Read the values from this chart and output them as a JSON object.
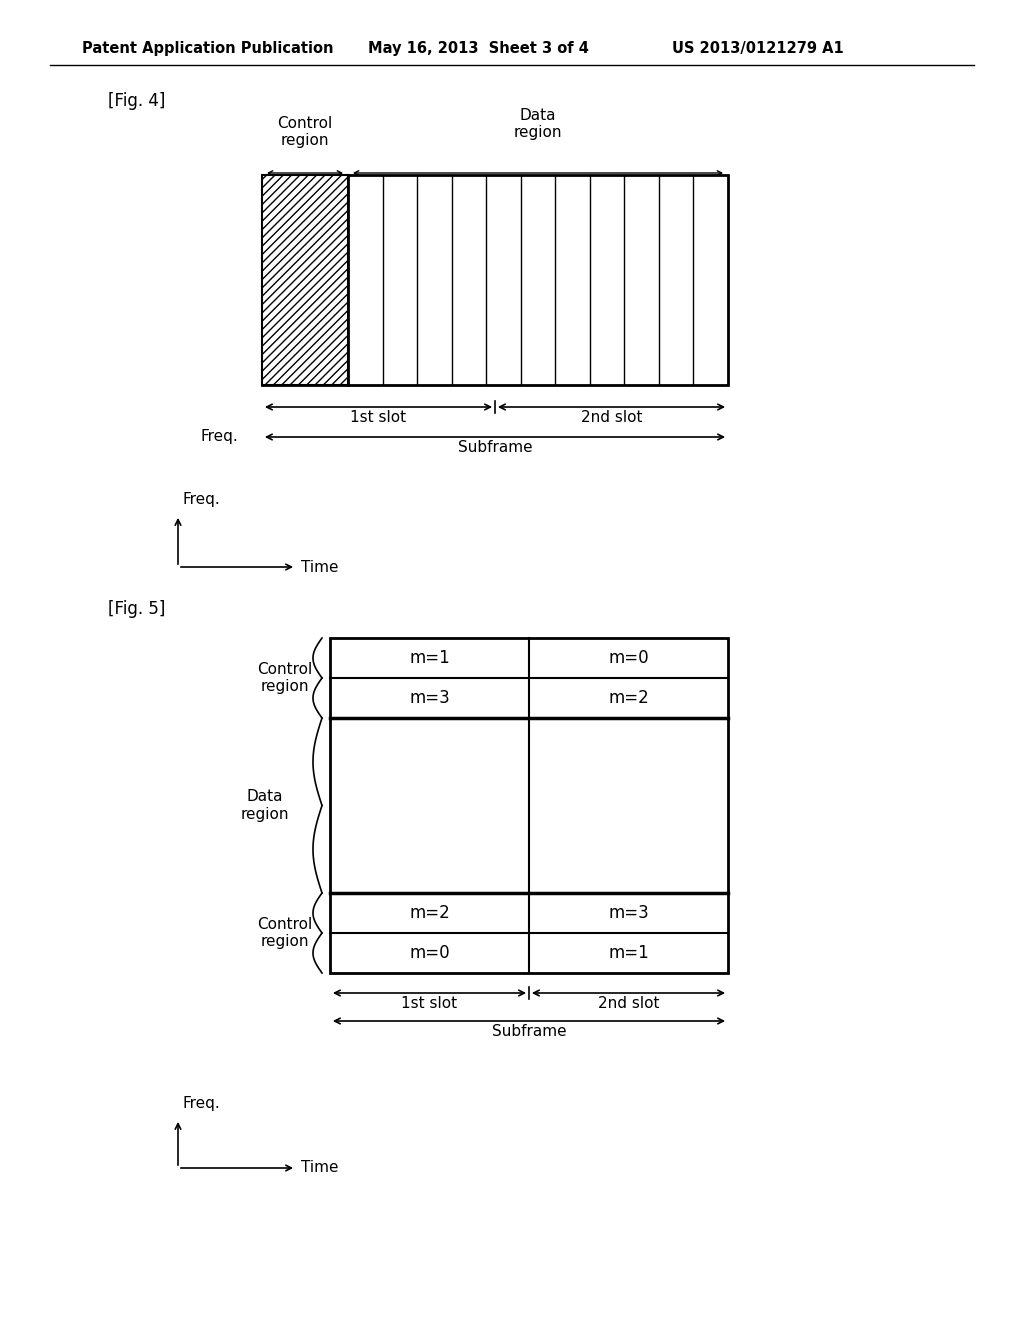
{
  "bg_color": "#ffffff",
  "header_text": "Patent Application Publication",
  "header_date": "May 16, 2013  Sheet 3 of 4",
  "header_patent": "US 2013/0121279 A1",
  "fig4_label": "[Fig. 4]",
  "fig5_label": "[Fig. 5]",
  "fig4_control_label": "Control\nregion",
  "fig4_data_label": "Data\nregion",
  "fig4_1st_slot": "1st slot",
  "fig4_2nd_slot": "2nd slot",
  "fig4_subframe": "Subframe",
  "fig4_freq": "Freq.",
  "fig4_time": "Time",
  "fig5_control_top_label": "Control\nregion",
  "fig5_data_label": "Data\nregion",
  "fig5_control_bot_label": "Control\nregion",
  "fig5_1st_slot": "1st slot",
  "fig5_2nd_slot": "2nd slot",
  "fig5_subframe": "Subframe",
  "fig5_freq": "Freq.",
  "fig5_time": "Time",
  "fig5_cells": [
    [
      "m=1",
      "m=0"
    ],
    [
      "m=3",
      "m=2"
    ],
    [
      "m=2",
      "m=3"
    ],
    [
      "m=0",
      "m=1"
    ]
  ]
}
